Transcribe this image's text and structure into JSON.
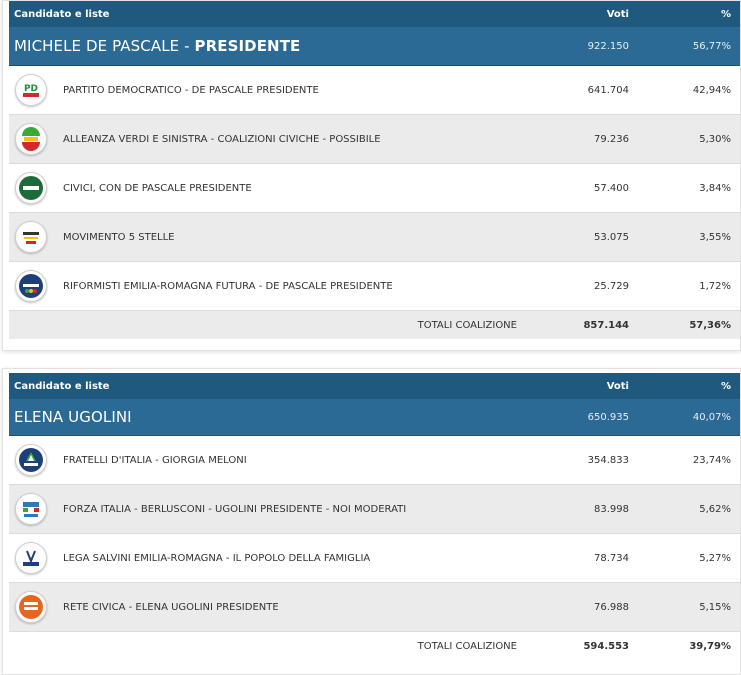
{
  "header": {
    "col_name": "Candidato e liste",
    "col_votes": "Voti",
    "col_pct": "%"
  },
  "coalitions": [
    {
      "candidate_first": "MICHELE DE PASCALE - ",
      "candidate_role": "PRESIDENTE",
      "votes": "922.150",
      "pct": "56,77%",
      "lists": [
        {
          "name": "PARTITO DEMOCRATICO - DE PASCALE PRESIDENTE",
          "votes": "641.704",
          "pct": "42,94%",
          "logo_color": "#d62828",
          "logo_text": "PD"
        },
        {
          "name": "ALLEANZA VERDI E SINISTRA - COALIZIONI CIVICHE - POSSIBILE",
          "votes": "79.236",
          "pct": "5,30%",
          "logo_color": "#3aa935",
          "logo_text": "AVS"
        },
        {
          "name": "CIVICI, CON DE PASCALE PRESIDENTE",
          "votes": "57.400",
          "pct": "3,84%",
          "logo_color": "#1e6b3a",
          "logo_text": "DE PASCALE"
        },
        {
          "name": "MOVIMENTO 5 STELLE",
          "votes": "53.075",
          "pct": "3,55%",
          "logo_color": "#f2f2f2",
          "logo_text": "M5S"
        },
        {
          "name": "RIFORMISTI EMILIA-ROMAGNA FUTURA - DE PASCALE PRESIDENTE",
          "votes": "25.729",
          "pct": "1,72%",
          "logo_color": "#1d3f7a",
          "logo_text": "Futura"
        }
      ],
      "total_label": "TOTALI COALIZIONE",
      "total_votes": "857.144",
      "total_pct": "57,36%"
    },
    {
      "candidate_first": "ELENA UGOLINI",
      "candidate_role": "",
      "votes": "650.935",
      "pct": "40,07%",
      "lists": [
        {
          "name": "FRATELLI D'ITALIA - GIORGIA MELONI",
          "votes": "354.833",
          "pct": "23,74%",
          "logo_color": "#1d3f7a",
          "logo_text": "MELONI"
        },
        {
          "name": "FORZA ITALIA - BERLUSCONI - UGOLINI PRESIDENTE - NOI MODERATI",
          "votes": "83.998",
          "pct": "5,62%",
          "logo_color": "#2a7ac0",
          "logo_text": "FI"
        },
        {
          "name": "LEGA SALVINI EMILIA-ROMAGNA - IL POPOLO DELLA FAMIGLIA",
          "votes": "78.734",
          "pct": "5,27%",
          "logo_color": "#1d3f7a",
          "logo_text": "LEGA"
        },
        {
          "name": "RETE CIVICA - ELENA UGOLINI PRESIDENTE",
          "votes": "76.988",
          "pct": "5,15%",
          "logo_color": "#e8651e",
          "logo_text": "UGOLINI"
        }
      ],
      "total_label": "TOTALI COALIZIONE",
      "total_votes": "594.553",
      "total_pct": "39,79%"
    }
  ]
}
